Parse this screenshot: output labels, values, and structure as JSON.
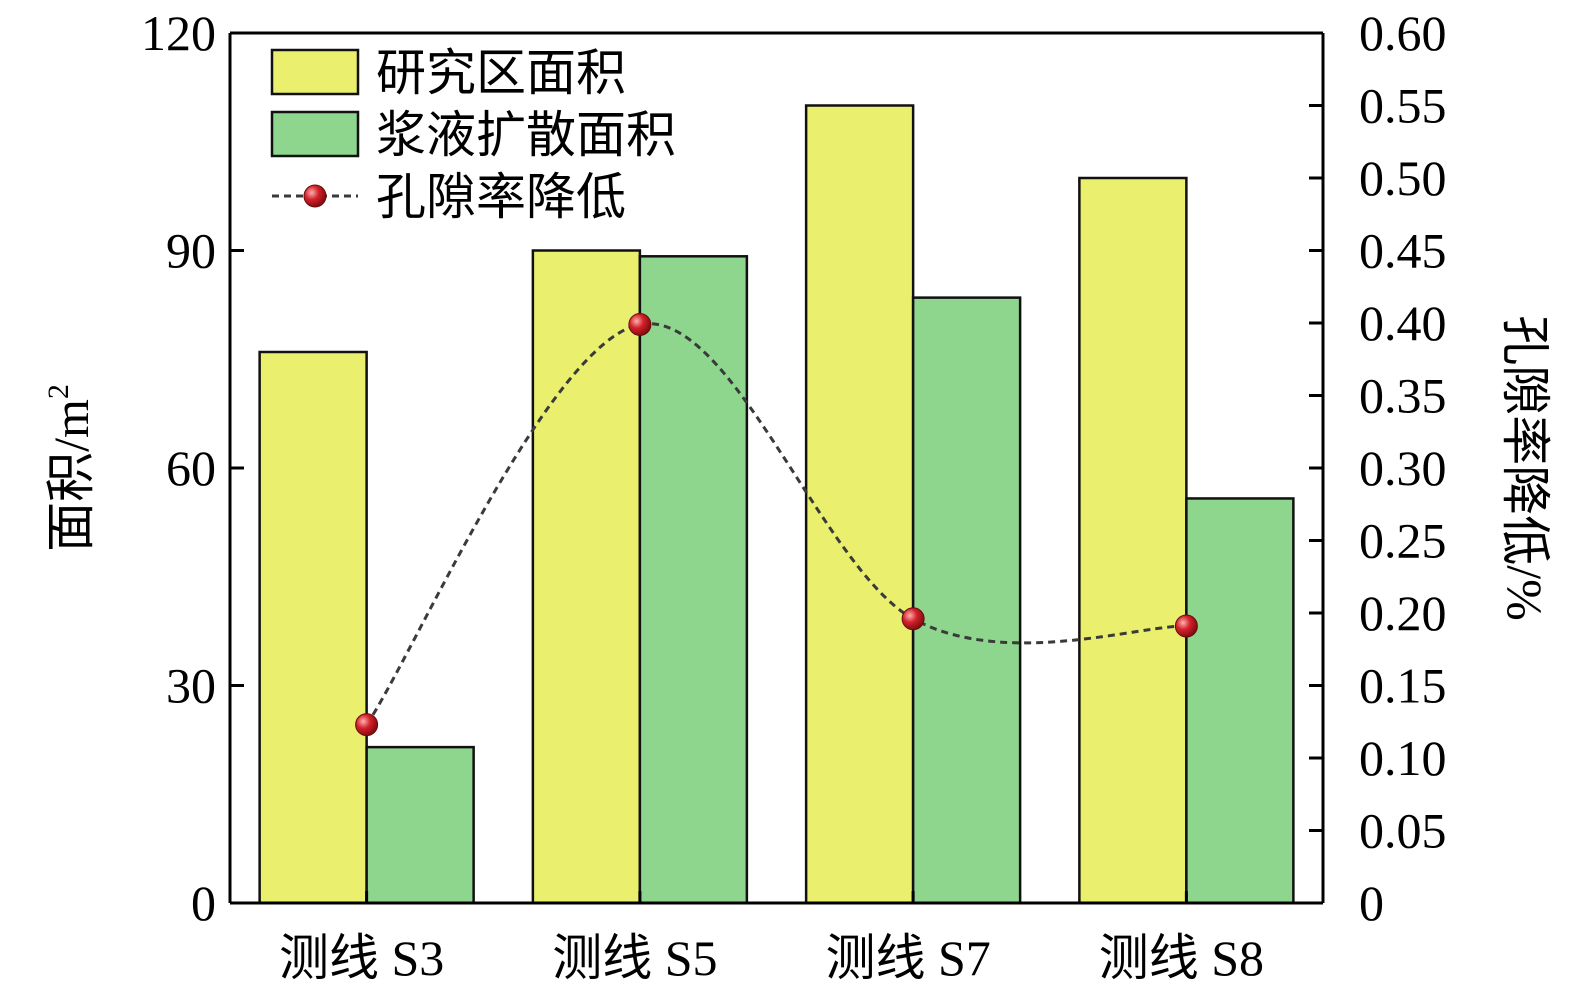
{
  "chart_data": {
    "type": "bar",
    "categories": [
      "测线 S3",
      "测线 S5",
      "测线 S7",
      "测线 S8"
    ],
    "series": [
      {
        "name": "研究区面积",
        "type": "bar",
        "axis": "left",
        "color": "#EAF06E",
        "values": [
          76,
          90,
          110,
          100
        ]
      },
      {
        "name": "浆液扩散面积",
        "type": "bar",
        "axis": "left",
        "color": "#8ED68E",
        "values": [
          21.5,
          89.2,
          83.5,
          55.8
        ]
      },
      {
        "name": "孔隙率降低",
        "type": "line",
        "style": "dashed-smooth",
        "axis": "right",
        "line_color": "#3a3a3a",
        "marker_color": "#C0141B",
        "values": [
          0.123,
          0.399,
          0.196,
          0.191
        ]
      }
    ],
    "ylabel": "面积/m²",
    "ylabel_main": "面积/m",
    "ylabel_sup": "2",
    "ylabel_right": "孔隙率降低/%",
    "ylim": [
      0,
      120
    ],
    "ylim_right": [
      0,
      0.6
    ],
    "yticks": [
      "0",
      "30",
      "60",
      "90",
      "120"
    ],
    "yticks_right": [
      "0",
      "0.05",
      "0.10",
      "0.15",
      "0.20",
      "0.25",
      "0.30",
      "0.35",
      "0.40",
      "0.45",
      "0.50",
      "0.55",
      "0.60"
    ],
    "legend_position": "top-left",
    "grid": false
  }
}
